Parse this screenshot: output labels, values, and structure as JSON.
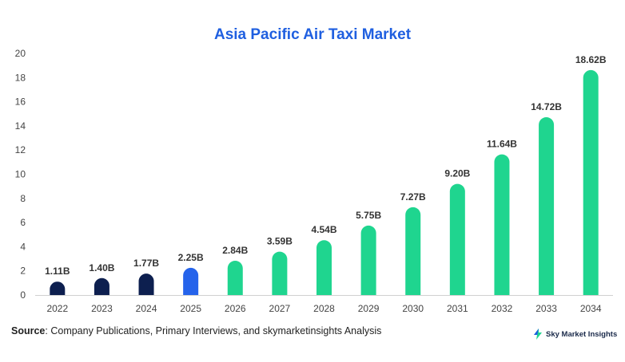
{
  "chart_data": {
    "type": "bar",
    "title": "Asia Pacific Air Taxi Market",
    "categories": [
      "2022",
      "2023",
      "2024",
      "2025",
      "2026",
      "2027",
      "2028",
      "2029",
      "2030",
      "2031",
      "2032",
      "2033",
      "2034"
    ],
    "values": [
      1.11,
      1.4,
      1.77,
      2.25,
      2.84,
      3.59,
      4.54,
      5.75,
      7.27,
      9.2,
      11.64,
      14.72,
      18.62
    ],
    "data_labels": [
      "1.11B",
      "1.40B",
      "1.77B",
      "2.25B",
      "2.84B",
      "3.59B",
      "4.54B",
      "5.75B",
      "7.27B",
      "9.20B",
      "11.64B",
      "14.72B",
      "18.62B"
    ],
    "bar_colors": [
      "#0d1f4f",
      "#0d1f4f",
      "#0d1f4f",
      "#2563eb",
      "#1fd58f",
      "#1fd58f",
      "#1fd58f",
      "#1fd58f",
      "#1fd58f",
      "#1fd58f",
      "#1fd58f",
      "#1fd58f",
      "#1fd58f"
    ],
    "ylim": [
      0,
      20
    ],
    "yticks": [
      0,
      2,
      4,
      6,
      8,
      10,
      12,
      14,
      16,
      18,
      20
    ],
    "xlabel": "",
    "ylabel": "",
    "grid": false
  },
  "footer": {
    "source_label": "Source",
    "source_text": ": Company Publications, Primary Interviews, and skymarketinsights Analysis",
    "logo_text": "Sky Market Insights"
  }
}
